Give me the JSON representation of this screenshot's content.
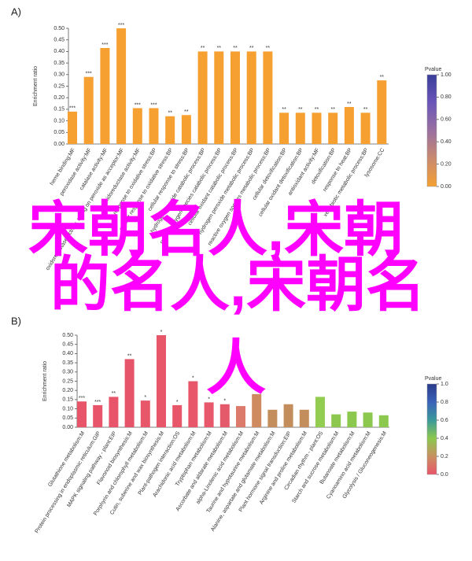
{
  "chart_data": [
    {
      "type": "bar",
      "panel": "A)",
      "ylabel": "Enrichment ratio",
      "categories": [
        "heme binding:MF",
        "peroxidase activity:MF",
        "catalase activity:MF",
        "oxidoreductase activity, acting on peroxide as acceptor:MF",
        "oxidoreductase activity:MF",
        "response to oxidative stress:BP",
        "cellular response to oxidative stress:BP",
        "cellular response to stress:BP",
        "hydrogen peroxide catabolic process:BP",
        "reactive oxygen species catabolic process:BP",
        "cellular oxidant catabolic process:BP",
        "hydrogen peroxide metabolic process:BP",
        "reactive oxygen species metabolic process:BP",
        "cellular detoxification:BP",
        "cellular oxidant detoxification:BP",
        "antioxidant activity:MF",
        "detoxification:BP",
        "response to heat:BP",
        "xenobiotic metabolic process:BP",
        "lysosome:CC"
      ],
      "values": [
        0.14,
        0.29,
        0.415,
        0.5,
        0.155,
        0.155,
        0.12,
        0.125,
        0.4,
        0.4,
        0.4,
        0.4,
        0.4,
        0.135,
        0.135,
        0.135,
        0.135,
        0.16,
        0.135,
        0.275
      ],
      "annotations": [
        "***",
        "***",
        "***",
        "***",
        "***",
        "***",
        "**",
        "**",
        "**",
        "**",
        "**",
        "**",
        "**",
        "**",
        "**",
        "**",
        "**",
        "**",
        "**",
        "**"
      ],
      "colors": [
        "#f5a031",
        "#f5a031",
        "#f5a031",
        "#f5a031",
        "#f5a031",
        "#f5a031",
        "#f5a031",
        "#f5a031",
        "#f5a031",
        "#f5a031",
        "#f5a031",
        "#f5a031",
        "#f5a031",
        "#f5a031",
        "#f5a031",
        "#f5a031",
        "#f5a031",
        "#f5a031",
        "#f5a031",
        "#f5a031"
      ],
      "ylim": [
        0,
        0.5
      ],
      "yticks": [
        {
          "value": 0,
          "label": "0.00"
        },
        0.05,
        {
          "value": 0.1,
          "label": "0.10"
        },
        0.15,
        {
          "value": 0.2,
          "label": "0.20"
        },
        0.25,
        {
          "value": 0.3,
          "label": "0.30"
        },
        0.35,
        {
          "value": 0.4,
          "label": "0.40"
        },
        0.45,
        {
          "value": 0.5,
          "label": "0.50"
        }
      ],
      "colorbar": {
        "title": "Pvalue",
        "lim": [
          0,
          1
        ],
        "colors": [
          "#f5a031",
          "#c98a6e",
          "#9a6fa0",
          "#6a55b8",
          "#3a3e9a"
        ],
        "ticks": [
          {
            "value": 0,
            "label": "0.00"
          },
          {
            "value": 0.2,
            "label": "0.20"
          },
          {
            "value": 0.4,
            "label": "0.40"
          },
          {
            "value": 0.6,
            "label": "0.60"
          },
          {
            "value": 0.8,
            "label": "0.80"
          },
          {
            "value": 1,
            "label": "1.00"
          }
        ]
      }
    },
    {
      "type": "bar",
      "panel": "B)",
      "ylabel": "Enrichment ratio",
      "categories": [
        "Glutathione metabolism:M",
        "Protein processing in endoplasmic reticulum:GIP",
        "MAPK signaling pathway - plant:EIP",
        "Flavonoid biosynthesis:M",
        "Porphyrin and chlorophyll metabolism:M",
        "Cutin, suberine and wax biosynthesis:M",
        "Plant-pathogen interaction:OS",
        "Arachidonic acid metabolism:M",
        "Tryptophan metabolism:M",
        "Ascorbate and aldarate metabolism:M",
        "alpha-Linolenic acid metabolism:M",
        "Taurine and hypotaurine metabolism:M",
        "Alanine, aspartate and glutamate metabolism:M",
        "Plant hormone signal transduction:EIP",
        "Arginine and proline metabolism:M",
        "Circadian rhythm - plant:OS",
        "Starch and sucrose metabolism:M",
        "Butanoate metabolism:M",
        "Cyanoamino acid metabolism:M",
        "Glycolysis / Gluconeogenesis:M"
      ],
      "values": [
        0.14,
        0.12,
        0.165,
        0.37,
        0.145,
        0.5,
        0.12,
        0.25,
        0.135,
        0.125,
        0.115,
        0.18,
        0.095,
        0.125,
        0.095,
        0.165,
        0.07,
        0.085,
        0.08,
        0.065
      ],
      "annotations": [
        "***",
        "***",
        "**",
        "**",
        "*",
        "*",
        "*",
        "*",
        "*",
        "*",
        null,
        null,
        null,
        null,
        null,
        null,
        null,
        null,
        null,
        null
      ],
      "colors": [
        "#e8546a",
        "#e8546a",
        "#e8546a",
        "#e6546a",
        "#e8566a",
        "#e8566a",
        "#e8566a",
        "#e8566a",
        "#e6586a",
        "#e45a6a",
        "#dc7a6c",
        "#d08a60",
        "#c48e5c",
        "#c48e5c",
        "#c48e5c",
        "#92cc50",
        "#8cc84e",
        "#8cc84e",
        "#8cc84e",
        "#8cc84e"
      ],
      "ylim": [
        0,
        0.5
      ],
      "yticks": [
        {
          "value": 0,
          "label": "0.00"
        },
        0.05,
        {
          "value": 0.1,
          "label": "0.10"
        },
        0.15,
        {
          "value": 0.2,
          "label": "0.20"
        },
        0.25,
        {
          "value": 0.3,
          "label": "0.30"
        },
        0.35,
        {
          "value": 0.4,
          "label": "0.40"
        },
        0.45,
        {
          "value": 0.5,
          "label": "0.50"
        }
      ],
      "colorbar": {
        "title": "Pvalue",
        "lim": [
          0,
          1
        ],
        "colors": [
          "#e8546a",
          "#c89060",
          "#8cc84e",
          "#3a9a9a",
          "#3a62b8",
          "#2a3a8a"
        ],
        "ticks": [
          {
            "value": 0,
            "label": "0.0"
          },
          0.2,
          0.4,
          0.6,
          0.8,
          {
            "value": 1,
            "label": "1.0"
          }
        ]
      }
    }
  ],
  "overlay_text": [
    "宋朝名人,宋朝",
    "的名人,宋朝名",
    "人"
  ]
}
